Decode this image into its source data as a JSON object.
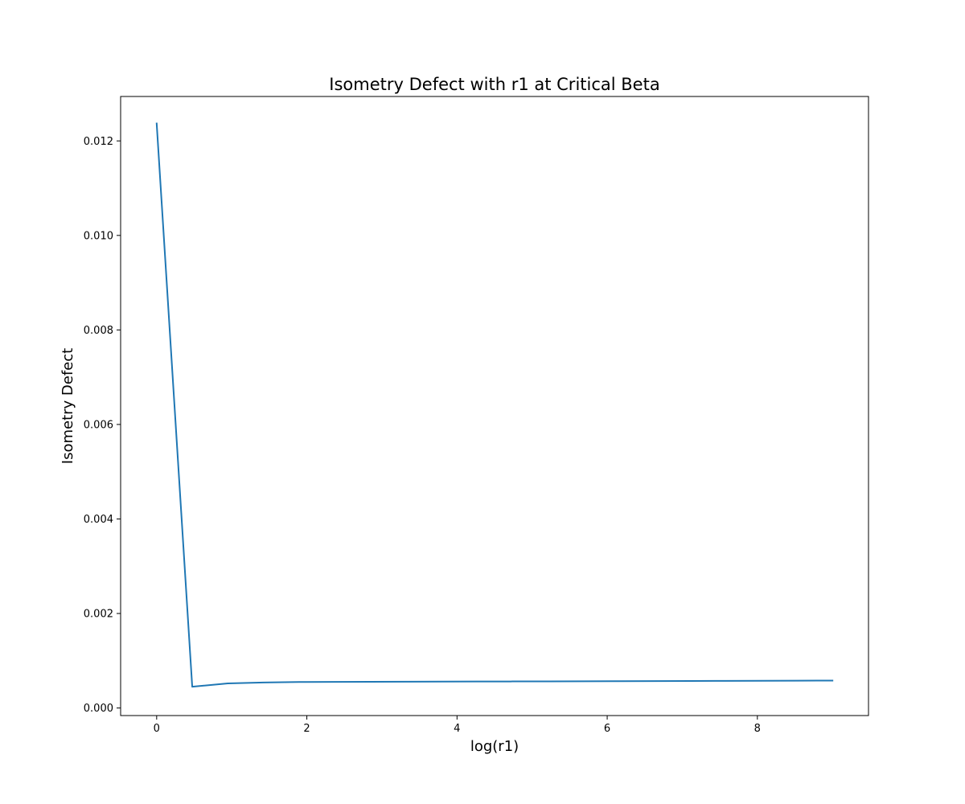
{
  "chart_data": {
    "type": "line",
    "title": "Isometry Defect with r1 at Critical Beta",
    "xlabel": "log(r1)",
    "ylabel": "Isometry Defect",
    "xlim": [
      -0.48,
      9.48
    ],
    "ylim": [
      -0.00016,
      0.01294
    ],
    "xticks": [
      0,
      2,
      4,
      6,
      8
    ],
    "xtick_labels": [
      "0",
      "2",
      "4",
      "6",
      "8"
    ],
    "yticks": [
      0.0,
      0.002,
      0.004,
      0.006,
      0.008,
      0.01,
      0.012
    ],
    "ytick_labels": [
      "0.000",
      "0.002",
      "0.004",
      "0.006",
      "0.008",
      "0.010",
      "0.012"
    ],
    "grid": false,
    "series": [
      {
        "color": "#1f77b4",
        "x": [
          0.0,
          0.4737,
          0.9474,
          1.4211,
          1.8947,
          2.3684,
          2.8421,
          3.3158,
          3.7895,
          4.2632,
          4.7368,
          5.2105,
          5.6842,
          6.1579,
          6.6316,
          7.1053,
          7.5789,
          8.0526,
          8.5263,
          9.0
        ],
        "y": [
          0.01237,
          0.00045,
          0.00052,
          0.00054,
          0.00055,
          0.000553,
          0.000555,
          0.000557,
          0.000558,
          0.00056,
          0.000562,
          0.000564,
          0.000566,
          0.000568,
          0.00057,
          0.000572,
          0.000574,
          0.000576,
          0.000578,
          0.00058
        ]
      }
    ]
  }
}
